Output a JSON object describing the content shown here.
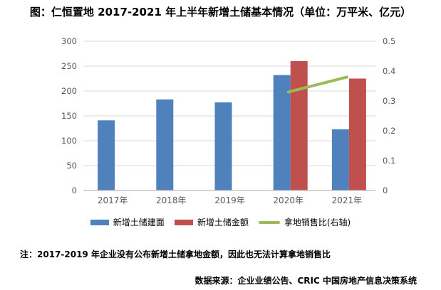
{
  "title": "图：仁恒置地 2017-2021 年上半年新增土储基本情况（单位：万平米、亿元）",
  "note": "注：2017-2019 年企业没有公布新增土储拿地金额，因此也无法计算拿地销售比",
  "source": "数据来源：企业业绩公告、CRIC 中国房地产信息决策系统",
  "colors": {
    "bar_blue": "#4F81BD",
    "bar_red": "#C0504D",
    "line_green": "#9BBB59",
    "gridline": "#D9D9D9",
    "axis_line": "#C6C6C6",
    "tick_label": "#595959"
  },
  "chart_data": {
    "type": "bar",
    "subtype": "bar+line-combo",
    "categories": [
      "2017年",
      "2018年",
      "2019年",
      "2020年",
      "2021年"
    ],
    "series": [
      {
        "name": "新增土储建面",
        "kind": "bar",
        "axis": "left",
        "color": "#4F81BD",
        "values": [
          141,
          183,
          177,
          232,
          123
        ]
      },
      {
        "name": "新增土储金额",
        "kind": "bar",
        "axis": "left",
        "color": "#C0504D",
        "values": [
          null,
          null,
          null,
          260,
          225
        ]
      },
      {
        "name": "拿地销售比(右轴)",
        "kind": "line",
        "axis": "right",
        "color": "#9BBB59",
        "values": [
          null,
          null,
          null,
          0.33,
          0.38
        ]
      }
    ],
    "left_axis": {
      "min": 0,
      "max": 300,
      "step": 50,
      "ticks": [
        "0",
        "50",
        "100",
        "150",
        "200",
        "250",
        "300"
      ]
    },
    "right_axis": {
      "min": 0,
      "max": 0.5,
      "step": 0.1,
      "ticks": [
        "0",
        "0.1",
        "0.2",
        "0.3",
        "0.4",
        "0.5"
      ]
    },
    "grid": true,
    "legend_position": "bottom"
  }
}
